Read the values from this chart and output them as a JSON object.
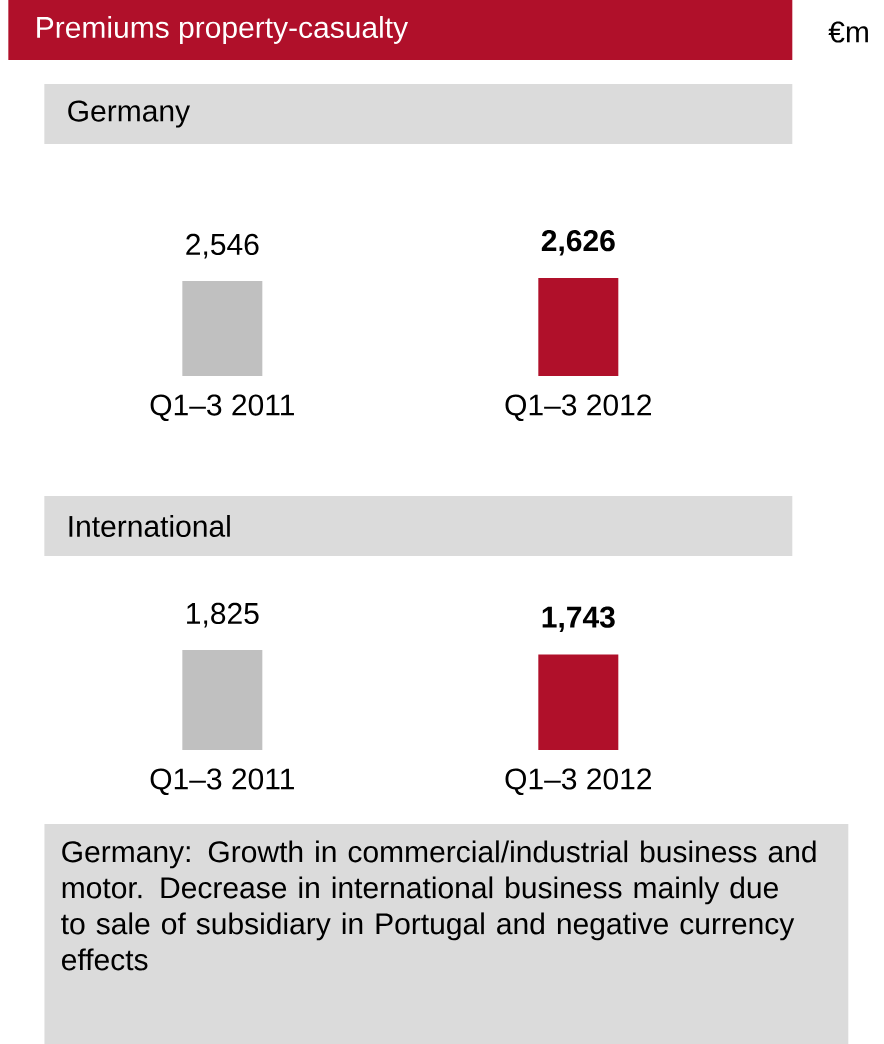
{
  "chart_data": [
    {
      "type": "bar",
      "title": "Premiums property-casualty",
      "ylabel": "€m",
      "subtitle": "Germany",
      "categories": [
        "Q1–3 2011",
        "Q1–3 2012"
      ],
      "values": [
        2546,
        2626
      ],
      "colors": [
        "#c0c0c0",
        "#b0102a"
      ],
      "value_labels": [
        "2,546",
        "**2,626**"
      ],
      "tick_labels": "x"
    },
    {
      "type": "bar",
      "subtitle": "International",
      "categories": [
        "Q1–3 2011",
        "Q1–3 2012"
      ],
      "values": [
        1825,
        1743
      ],
      "colors": [
        "#c0c0c0",
        "#b0102a"
      ],
      "value_labels": [
        "1,825",
        "**1,743**"
      ],
      "tick_labels": "x",
      "annotations": [
        "Germany: Growth in commercial/industrial business and motor. Decrease in international business mainly due to sale of subsidiary in Portugal and negative currency effects"
      ]
    }
  ]
}
